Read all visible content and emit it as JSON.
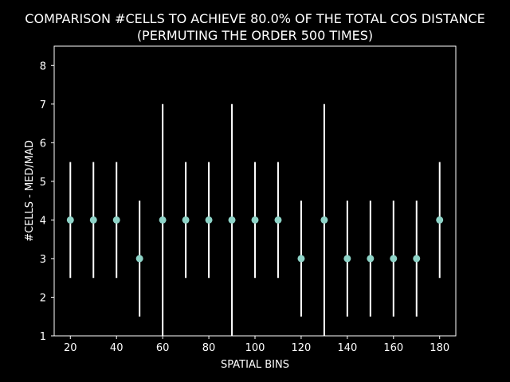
{
  "chart_data": {
    "type": "scatter",
    "title": "COMPARISON #CELLS TO ACHIEVE 80.0% OF THE TOTAL COS DISTANCE",
    "subtitle": "(PERMUTING THE ORDER 500 TIMES)",
    "xlabel": "SPATIAL BINS",
    "ylabel": "#CELLS - MED/MAD",
    "xlim": [
      13,
      187
    ],
    "ylim": [
      1,
      8.5
    ],
    "xticks": [
      20,
      40,
      60,
      80,
      100,
      120,
      140,
      160,
      180
    ],
    "yticks": [
      1,
      2,
      3,
      4,
      5,
      6,
      7,
      8
    ],
    "grid": false,
    "point_color": "#8dd3c7",
    "errorbar_color": "#ffffff",
    "x": [
      20,
      30,
      40,
      50,
      60,
      70,
      80,
      90,
      100,
      110,
      120,
      130,
      140,
      150,
      160,
      170,
      180
    ],
    "y": [
      4,
      4,
      4,
      3,
      4,
      4,
      4,
      4,
      4,
      4,
      3,
      4,
      3,
      3,
      3,
      3,
      4
    ],
    "yerr": [
      1.5,
      1.5,
      1.5,
      1.5,
      3,
      1.5,
      1.5,
      3,
      1.5,
      1.5,
      1.5,
      3,
      1.5,
      1.5,
      1.5,
      1.5,
      1.5
    ]
  }
}
